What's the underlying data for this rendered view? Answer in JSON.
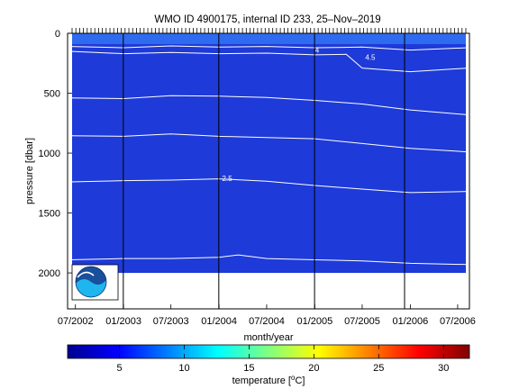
{
  "chart_data": {
    "type": "heatmap",
    "title": "WMO ID 4900175, internal ID 233, 25–Nov–2019",
    "xlabel": "month/year",
    "ylabel": "pressure [dbar]",
    "colorbar_label_prefix": "temperature [",
    "colorbar_label_sup": "o",
    "colorbar_label_suffix": "C]",
    "x_ticks": [
      "07/2002",
      "01/2003",
      "07/2003",
      "01/2004",
      "07/2004",
      "01/2005",
      "07/2005",
      "01/2006",
      "07/2006"
    ],
    "x_tick_values": [
      "2002-07-01",
      "2003-01-01",
      "2003-07-01",
      "2004-01-01",
      "2004-07-01",
      "2005-01-01",
      "2005-07-01",
      "2006-01-01",
      "2006-07-01"
    ],
    "xlim": [
      "2002-06-01",
      "2006-08-15"
    ],
    "y_ticks": [
      0,
      500,
      1000,
      1500,
      2000
    ],
    "ylim": [
      2300,
      0
    ],
    "y_reversed": true,
    "colorbar_ticks": [
      5,
      10,
      15,
      20,
      25,
      30
    ],
    "colorbar_range": [
      1,
      32
    ],
    "colormap": "jet",
    "field_color": "#1e3ad8",
    "surface_color": "#2f6bf0",
    "profile_top_dbar": 0,
    "profile_bottom_dbar": 2000,
    "vertical_lines": [
      "2002-12-31",
      "2003-12-31",
      "2004-12-31",
      "2005-12-10"
    ],
    "isotherms": [
      {
        "label": "4",
        "label_x": "2005-01-10",
        "label_pressure": 140,
        "points": [
          [
            "2002-06-10",
            110
          ],
          [
            "2003-01-01",
            120
          ],
          [
            "2003-07-01",
            105
          ],
          [
            "2004-01-01",
            115
          ],
          [
            "2004-07-01",
            110
          ],
          [
            "2005-01-01",
            120
          ],
          [
            "2005-07-01",
            115
          ],
          [
            "2006-01-01",
            140
          ],
          [
            "2006-08-10",
            120
          ]
        ]
      },
      {
        "label": "4.5",
        "label_x": "2005-08-01",
        "label_pressure": 200,
        "points": [
          [
            "2002-06-10",
            150
          ],
          [
            "2003-01-01",
            170
          ],
          [
            "2003-07-01",
            160
          ],
          [
            "2004-01-01",
            170
          ],
          [
            "2004-07-01",
            165
          ],
          [
            "2005-01-01",
            180
          ],
          [
            "2005-05-01",
            175
          ],
          [
            "2005-07-01",
            290
          ],
          [
            "2006-01-01",
            320
          ],
          [
            "2006-08-10",
            290
          ]
        ]
      },
      {
        "label": "",
        "label_x": "",
        "label_pressure": 0,
        "points": [
          [
            "2002-06-10",
            540
          ],
          [
            "2003-01-01",
            545
          ],
          [
            "2003-07-01",
            520
          ],
          [
            "2004-01-01",
            525
          ],
          [
            "2004-07-01",
            535
          ],
          [
            "2005-01-01",
            560
          ],
          [
            "2005-07-01",
            590
          ],
          [
            "2006-01-01",
            640
          ],
          [
            "2006-08-10",
            680
          ]
        ]
      },
      {
        "label": "",
        "label_x": "",
        "label_pressure": 0,
        "points": [
          [
            "2002-06-10",
            855
          ],
          [
            "2003-01-01",
            860
          ],
          [
            "2003-07-01",
            840
          ],
          [
            "2004-01-01",
            860
          ],
          [
            "2004-07-01",
            870
          ],
          [
            "2005-01-01",
            880
          ],
          [
            "2005-07-01",
            920
          ],
          [
            "2006-01-01",
            960
          ],
          [
            "2006-08-10",
            990
          ]
        ]
      },
      {
        "label": "2.5",
        "label_x": "2004-02-01",
        "label_pressure": 1210,
        "points": [
          [
            "2002-06-10",
            1240
          ],
          [
            "2003-01-01",
            1230
          ],
          [
            "2003-07-01",
            1225
          ],
          [
            "2004-01-01",
            1215
          ],
          [
            "2004-07-01",
            1235
          ],
          [
            "2005-01-01",
            1270
          ],
          [
            "2005-07-01",
            1300
          ],
          [
            "2006-01-01",
            1330
          ],
          [
            "2006-08-10",
            1320
          ]
        ]
      },
      {
        "label": "",
        "label_x": "",
        "label_pressure": 0,
        "points": [
          [
            "2002-06-10",
            1890
          ],
          [
            "2003-01-01",
            1880
          ],
          [
            "2003-07-01",
            1880
          ],
          [
            "2004-01-01",
            1870
          ],
          [
            "2004-03-15",
            1850
          ],
          [
            "2004-07-01",
            1880
          ],
          [
            "2005-01-01",
            1890
          ],
          [
            "2005-07-01",
            1900
          ],
          [
            "2006-01-01",
            1920
          ],
          [
            "2006-08-10",
            1930
          ]
        ]
      }
    ]
  }
}
